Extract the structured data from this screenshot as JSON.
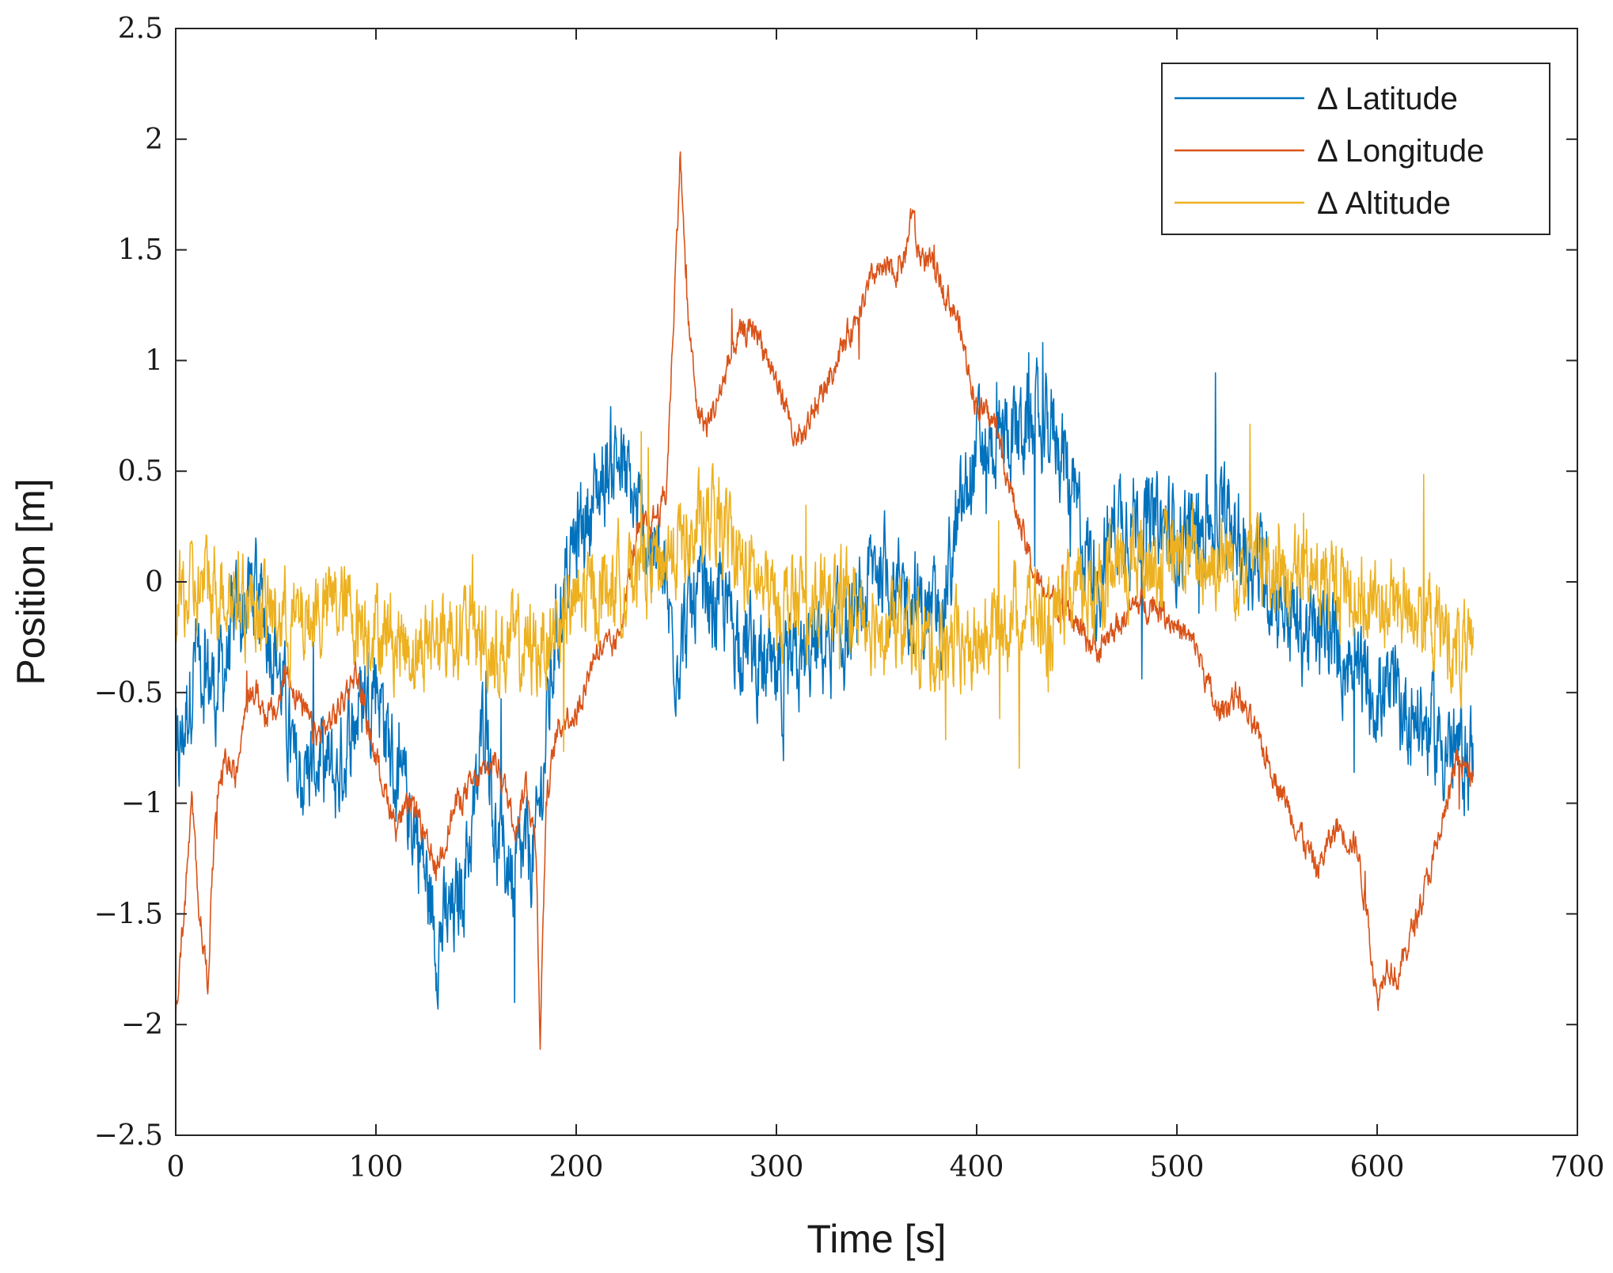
{
  "chart_data": {
    "type": "line",
    "title": "",
    "xlabel": "Time [s]",
    "ylabel": "Position [m]",
    "xlim": [
      0,
      700
    ],
    "ylim": [
      -2.5,
      2.5
    ],
    "xticks": [
      0,
      100,
      200,
      300,
      400,
      500,
      600,
      700
    ],
    "xtick_labels": [
      "0",
      "100",
      "200",
      "300",
      "400",
      "500",
      "600",
      "700"
    ],
    "yticks": [
      -2.5,
      -2,
      -1.5,
      -1,
      -0.5,
      0,
      0.5,
      1,
      1.5,
      2,
      2.5
    ],
    "ytick_labels": [
      "−2.5",
      "−2",
      "−1.5",
      "−1",
      "−0.5",
      "0",
      "0.5",
      "1",
      "1.5",
      "2",
      "2.5"
    ],
    "grid": false,
    "legend_position": "top-right",
    "series": [
      {
        "name": "Δ Latitude",
        "color": "#0072BD",
        "noise": 0.22,
        "x": [
          0,
          5,
          10,
          15,
          20,
          30,
          40,
          50,
          60,
          70,
          80,
          90,
          100,
          110,
          120,
          130,
          140,
          150,
          155,
          160,
          170,
          180,
          190,
          200,
          210,
          220,
          230,
          240,
          250,
          260,
          270,
          280,
          300,
          320,
          340,
          350,
          360,
          380,
          400,
          420,
          440,
          450,
          460,
          470,
          480,
          500,
          520,
          540,
          560,
          580,
          600,
          620,
          640,
          648
        ],
        "values": [
          -0.9,
          -0.6,
          -0.3,
          -0.4,
          -0.5,
          -0.2,
          0.0,
          -0.3,
          -0.9,
          -0.8,
          -0.9,
          -0.6,
          -0.4,
          -0.9,
          -1.1,
          -1.6,
          -1.5,
          -1.0,
          -0.5,
          -1.2,
          -1.3,
          -1.2,
          -0.2,
          0.2,
          0.4,
          0.6,
          0.3,
          0.1,
          -0.3,
          -0.1,
          -0.1,
          -0.2,
          -0.5,
          -0.3,
          -0.2,
          0.1,
          0.0,
          -0.2,
          0.6,
          0.7,
          0.7,
          0.3,
          0.0,
          0.3,
          0.3,
          0.2,
          0.3,
          0.1,
          -0.2,
          -0.3,
          -0.5,
          -0.6,
          -0.8,
          -0.8
        ]
      },
      {
        "name": "Δ Longitude",
        "color": "#D95319",
        "noise": 0.06,
        "x": [
          0,
          5,
          8,
          12,
          16,
          20,
          25,
          30,
          35,
          40,
          45,
          50,
          55,
          60,
          70,
          80,
          90,
          100,
          110,
          120,
          125,
          130,
          140,
          150,
          160,
          170,
          175,
          180,
          182,
          185,
          190,
          195,
          200,
          210,
          220,
          230,
          240,
          245,
          250,
          252,
          255,
          260,
          265,
          270,
          280,
          290,
          300,
          305,
          310,
          320,
          330,
          340,
          350,
          360,
          365,
          368,
          370,
          380,
          390,
          395,
          400,
          410,
          420,
          430,
          440,
          450,
          460,
          470,
          480,
          490,
          500,
          510,
          520,
          530,
          540,
          550,
          560,
          570,
          580,
          590,
          595,
          600,
          605,
          610,
          620,
          630,
          640,
          648
        ],
        "values": [
          -1.95,
          -1.4,
          -1.0,
          -1.5,
          -1.8,
          -1.0,
          -0.8,
          -0.9,
          -0.5,
          -0.5,
          -0.6,
          -0.6,
          -0.4,
          -0.5,
          -0.7,
          -0.6,
          -0.4,
          -0.8,
          -1.1,
          -1.0,
          -1.2,
          -1.3,
          -1.0,
          -0.9,
          -0.8,
          -1.1,
          -0.9,
          -1.2,
          -2.05,
          -1.0,
          -0.7,
          -0.6,
          -0.6,
          -0.3,
          -0.3,
          0.2,
          0.3,
          0.4,
          1.5,
          1.95,
          1.3,
          0.8,
          0.7,
          0.8,
          1.1,
          1.15,
          0.9,
          0.8,
          0.6,
          0.8,
          1.0,
          1.2,
          1.4,
          1.4,
          1.5,
          1.7,
          1.5,
          1.4,
          1.2,
          1.0,
          0.8,
          0.7,
          0.3,
          0.0,
          -0.1,
          -0.2,
          -0.3,
          -0.2,
          -0.1,
          -0.1,
          -0.2,
          -0.3,
          -0.6,
          -0.5,
          -0.7,
          -0.9,
          -1.1,
          -1.3,
          -1.1,
          -1.2,
          -1.5,
          -1.9,
          -1.7,
          -1.8,
          -1.5,
          -1.2,
          -0.8,
          -0.9
        ]
      },
      {
        "name": "Δ Altitude",
        "color": "#EDB120",
        "noise": 0.2,
        "x": [
          0,
          20,
          40,
          60,
          80,
          100,
          120,
          140,
          160,
          180,
          200,
          220,
          240,
          260,
          270,
          280,
          300,
          320,
          340,
          360,
          380,
          400,
          420,
          440,
          450,
          460,
          480,
          500,
          520,
          540,
          560,
          580,
          600,
          620,
          640,
          648
        ],
        "values": [
          -0.1,
          0.0,
          -0.1,
          -0.2,
          -0.1,
          -0.2,
          -0.3,
          -0.2,
          -0.3,
          -0.3,
          -0.1,
          0.0,
          0.1,
          0.2,
          0.3,
          0.1,
          -0.1,
          -0.1,
          -0.1,
          -0.2,
          -0.3,
          -0.3,
          -0.1,
          -0.2,
          -0.1,
          0.0,
          0.1,
          0.1,
          0.1,
          0.1,
          0.0,
          0.0,
          -0.1,
          -0.1,
          -0.3,
          -0.4
        ]
      }
    ]
  }
}
